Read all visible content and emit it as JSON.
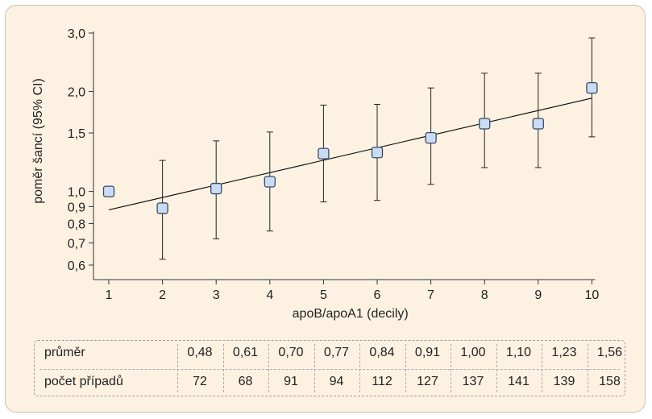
{
  "chart_data": {
    "type": "scatter",
    "title": "",
    "xlabel": "apoB/apoA1 (decily)",
    "ylabel": "poměr šancí (95% CI)",
    "y_scale": "log",
    "ylim": [
      0.58,
      3.05
    ],
    "xlim": [
      0.6,
      10.4
    ],
    "x_ticks": [
      1,
      2,
      3,
      4,
      5,
      6,
      7,
      8,
      9,
      10
    ],
    "y_ticks": [
      0.6,
      0.7,
      0.8,
      0.9,
      1.0,
      1.5,
      2.0,
      3.0
    ],
    "y_tick_labels": [
      "0,6",
      "0,7",
      "0,8",
      "0,9",
      "1,0",
      "1,5",
      "2,0",
      "3,0"
    ],
    "points": [
      {
        "x": 1,
        "y": 1.0,
        "lo": null,
        "hi": null
      },
      {
        "x": 2,
        "y": 0.89,
        "lo": 0.625,
        "hi": 1.24
      },
      {
        "x": 3,
        "y": 1.02,
        "lo": 0.72,
        "hi": 1.42
      },
      {
        "x": 4,
        "y": 1.07,
        "lo": 0.76,
        "hi": 1.51
      },
      {
        "x": 5,
        "y": 1.3,
        "lo": 0.93,
        "hi": 1.82
      },
      {
        "x": 6,
        "y": 1.31,
        "lo": 0.94,
        "hi": 1.83
      },
      {
        "x": 7,
        "y": 1.45,
        "lo": 1.05,
        "hi": 2.05
      },
      {
        "x": 8,
        "y": 1.6,
        "lo": 1.18,
        "hi": 2.27
      },
      {
        "x": 9,
        "y": 1.6,
        "lo": 1.18,
        "hi": 2.27
      },
      {
        "x": 10,
        "y": 2.05,
        "lo": 1.46,
        "hi": 2.9
      }
    ],
    "trend_line": {
      "x": [
        1,
        10
      ],
      "y": [
        0.88,
        1.91
      ]
    },
    "grid": false,
    "marker_fill": "#c9dcf3",
    "marker_stroke": "#3a4a66"
  },
  "table": {
    "rows": [
      {
        "label": "průměr",
        "values": [
          "0,48",
          "0,61",
          "0,70",
          "0,77",
          "0,84",
          "0,91",
          "1,00",
          "1,10",
          "1,23",
          "1,56"
        ]
      },
      {
        "label": "počet případů",
        "values": [
          "72",
          "68",
          "91",
          "94",
          "112",
          "127",
          "137",
          "141",
          "139",
          "158"
        ]
      }
    ]
  },
  "colors": {
    "panel_bg": "#fdf2e2",
    "axis": "#333333"
  }
}
